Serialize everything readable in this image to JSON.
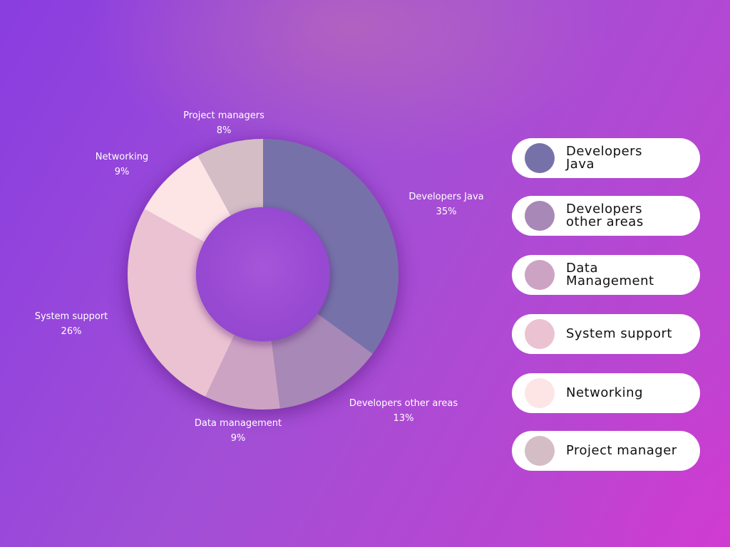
{
  "chart_data": {
    "type": "pie",
    "variant": "donut",
    "slices": [
      {
        "label": "Developers Java",
        "value_label": "35%",
        "value": 35,
        "color": "#7672a9"
      },
      {
        "label": "Developers other areas",
        "value_label": "13%",
        "value": 13,
        "color": "#a888b6"
      },
      {
        "label": "Data management",
        "value_label": "9%",
        "value": 9,
        "color": "#cda3c4"
      },
      {
        "label": "System support",
        "value_label": "26%",
        "value": 26,
        "color": "#ebc2d1"
      },
      {
        "label": "Networking",
        "value_label": "9%",
        "value": 9,
        "color": "#fde5e6"
      },
      {
        "label": "Project managers",
        "value_label": "8%",
        "value": 8,
        "color": "#d5bdc5"
      }
    ],
    "legend": [
      {
        "label": "Developers\nJava",
        "color": "#7672a9"
      },
      {
        "label": "Developers\nother areas",
        "color": "#a888b6"
      },
      {
        "label": "Data\nManagement",
        "color": "#cda3c4"
      },
      {
        "label": "System support",
        "color": "#ebc2d1"
      },
      {
        "label": "Networking",
        "color": "#fde5e6"
      },
      {
        "label": "Project manager",
        "color": "#d5bdc5"
      }
    ],
    "legend_position": "right"
  }
}
